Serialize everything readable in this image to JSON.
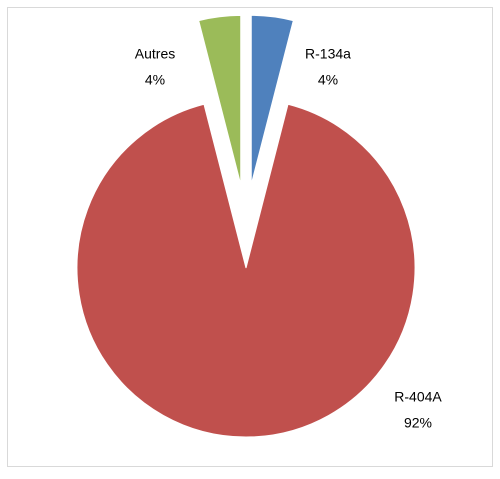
{
  "chart_data": {
    "type": "pie",
    "categories": [
      "R-134a",
      "R-404A",
      "Autres"
    ],
    "values": [
      4,
      92,
      4
    ],
    "value_labels": [
      "4%",
      "92%",
      "4%"
    ],
    "colors": [
      "#4f81bd",
      "#c0504d",
      "#9bbb59"
    ]
  }
}
